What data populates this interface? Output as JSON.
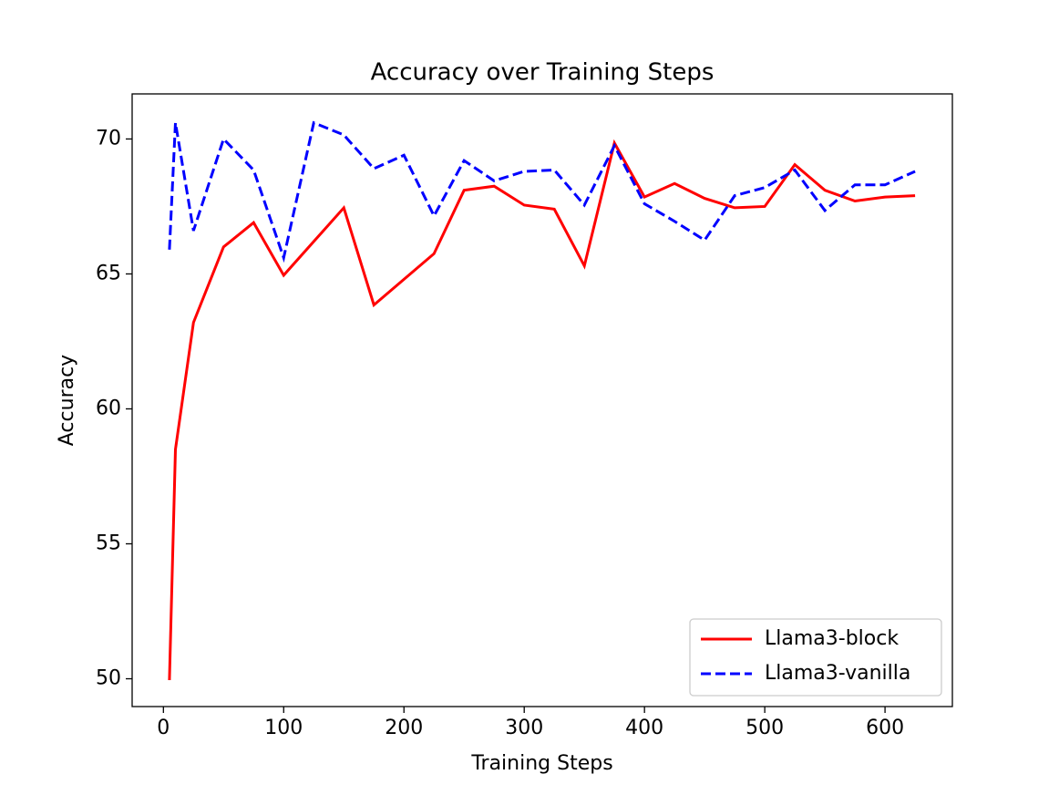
{
  "chart_data": {
    "type": "line",
    "title": "Accuracy over Training Steps",
    "x_label": "Training Steps",
    "y_label": "Accuracy",
    "x": [
      5,
      10,
      25,
      50,
      75,
      100,
      125,
      150,
      175,
      200,
      225,
      250,
      275,
      300,
      325,
      350,
      375,
      400,
      425,
      450,
      475,
      500,
      525,
      550,
      575,
      600,
      625
    ],
    "series": [
      {
        "name": "Llama3-block",
        "color": "#ff0000",
        "dash": "solid",
        "values": [
          49.95,
          58.5,
          63.2,
          66.0,
          66.9,
          64.95,
          66.2,
          67.45,
          63.85,
          64.8,
          65.75,
          68.1,
          68.25,
          67.55,
          67.4,
          65.3,
          69.85,
          67.85,
          68.35,
          67.8,
          67.45,
          67.5,
          69.05,
          68.1,
          67.7,
          67.85,
          67.9
        ]
      },
      {
        "name": "Llama3-vanilla",
        "color": "#0000ff",
        "dash": "dashed",
        "values": [
          65.9,
          70.6,
          66.6,
          70.0,
          68.85,
          65.6,
          70.6,
          70.15,
          68.9,
          69.4,
          67.15,
          69.2,
          68.45,
          68.8,
          68.85,
          67.55,
          69.75,
          67.6,
          66.95,
          66.25,
          67.9,
          68.2,
          68.85,
          67.35,
          68.3,
          68.3,
          68.8
        ]
      }
    ],
    "xlim": [
      -26,
      656
    ],
    "ylim": [
      48.97,
      71.67
    ],
    "xticks": [
      0,
      100,
      200,
      300,
      400,
      500,
      600
    ],
    "yticks": [
      50,
      55,
      60,
      65,
      70
    ],
    "legend": "lower right"
  }
}
